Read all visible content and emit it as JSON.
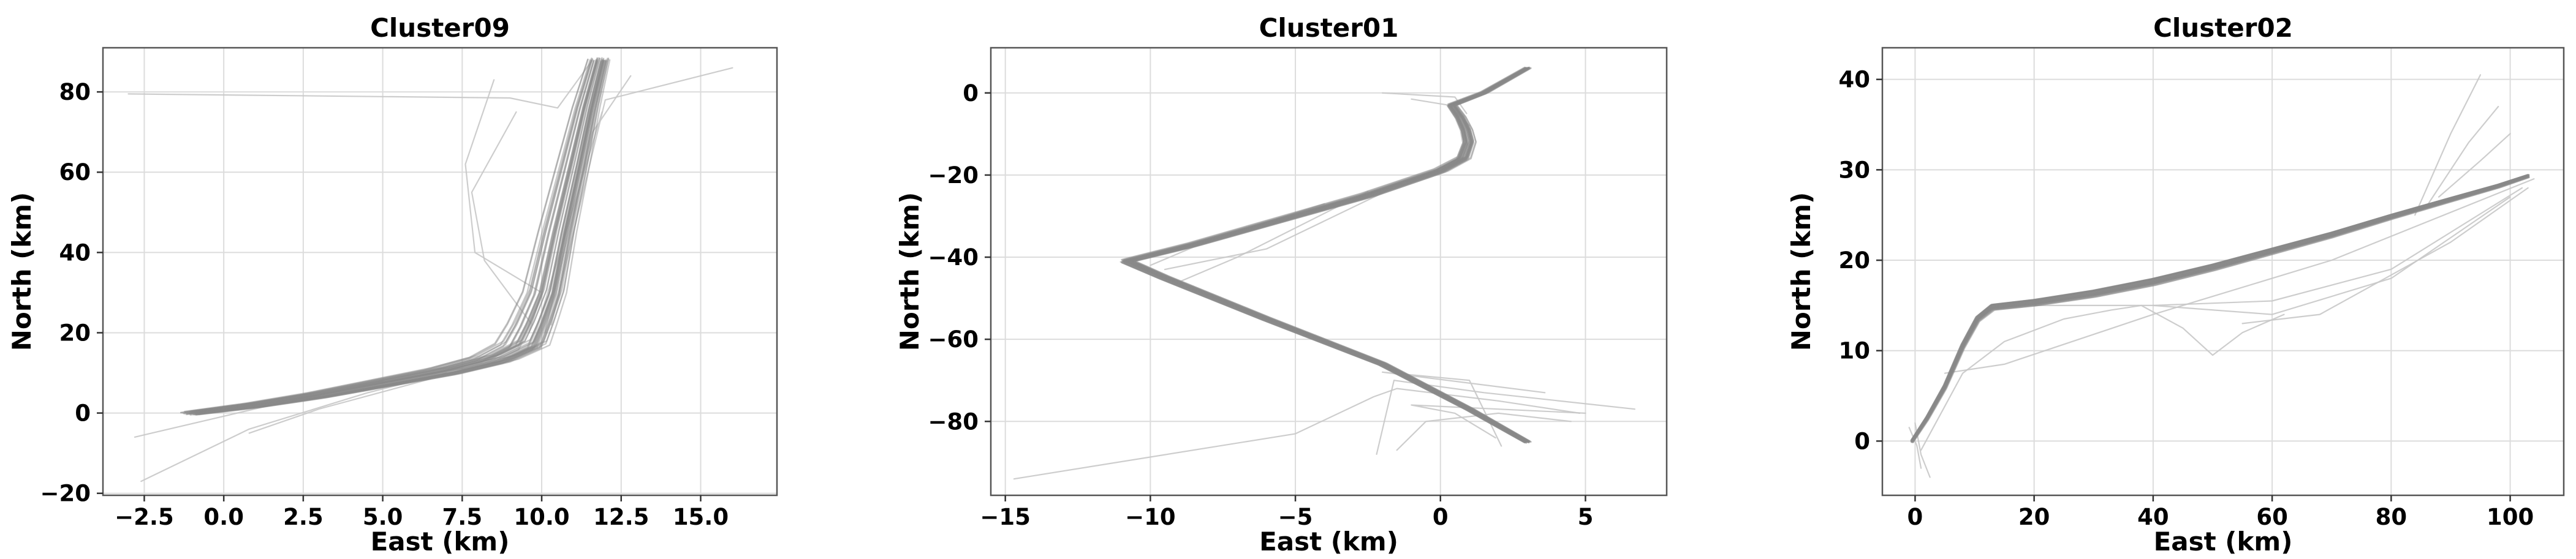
{
  "chart_data": [
    {
      "type": "line",
      "title": "Cluster09",
      "xlabel": "East (km)",
      "ylabel": "North (km)",
      "xlim": [
        -3.8,
        17.4
      ],
      "ylim": [
        -20.5,
        91.0
      ],
      "xticks": [
        -2.5,
        0.0,
        2.5,
        5.0,
        7.5,
        10.0,
        12.5,
        15.0
      ],
      "xtick_labels": [
        "−2.5",
        "0.0",
        "2.5",
        "5.0",
        "7.5",
        "10.0",
        "12.5",
        "15.0"
      ],
      "yticks": [
        -20,
        0,
        20,
        40,
        60,
        80
      ],
      "ytick_labels": [
        "−20",
        "0",
        "20",
        "40",
        "60",
        "80"
      ],
      "grid": true,
      "main_track": {
        "x": [
          -1.0,
          1.0,
          3.0,
          5.0,
          7.0,
          8.5,
          9.4,
          9.7,
          10.1,
          10.5,
          11.0,
          11.4,
          11.8
        ],
        "y": [
          0,
          2,
          4.5,
          7.5,
          10.5,
          13.5,
          17,
          22,
          30,
          45,
          62,
          76,
          88
        ]
      },
      "bundle_count": 45,
      "bundle_spread": [
        1.8,
        2.5
      ],
      "outliers": [
        {
          "x": [
            -3.0,
            9.0,
            10.5,
            11.6
          ],
          "y": [
            79.5,
            78.5,
            76.0,
            88.0
          ]
        },
        {
          "x": [
            8.5,
            7.6,
            7.9,
            10.0,
            9.6
          ],
          "y": [
            83.0,
            62.0,
            40.0,
            30.0,
            20.0
          ]
        },
        {
          "x": [
            9.2,
            7.8,
            8.2,
            9.7
          ],
          "y": [
            75.0,
            55.0,
            38.0,
            22.0
          ]
        },
        {
          "x": [
            16.0,
            12.0,
            10.3
          ],
          "y": [
            86.0,
            78.0,
            22.0
          ]
        },
        {
          "x": [
            12.8,
            11.6,
            10.1
          ],
          "y": [
            84.0,
            70.0,
            20.0
          ]
        },
        {
          "x": [
            11.9,
            10.0
          ],
          "y": [
            75.0,
            25.0
          ]
        },
        {
          "x": [
            -2.6,
            0.8,
            4.5,
            7.0
          ],
          "y": [
            -17.0,
            -4.0,
            5.0,
            10.0
          ]
        },
        {
          "x": [
            -2.8,
            1.5,
            5.0
          ],
          "y": [
            -6.0,
            2.0,
            8.0
          ]
        },
        {
          "x": [
            0.8,
            3.0,
            6.5
          ],
          "y": [
            -5.0,
            1.0,
            8.5
          ]
        }
      ]
    },
    {
      "type": "line",
      "title": "Cluster01",
      "xlabel": "East (km)",
      "ylabel": "North (km)",
      "xlim": [
        -15.5,
        7.8
      ],
      "ylim": [
        -98.0,
        11.0
      ],
      "xticks": [
        -15,
        -10,
        -5,
        0,
        5
      ],
      "xtick_labels": [
        "−15",
        "−10",
        "−5",
        "0",
        "5"
      ],
      "yticks": [
        -80,
        -60,
        -40,
        -20,
        0
      ],
      "ytick_labels": [
        "−80",
        "−60",
        "−40",
        "−20",
        "0"
      ],
      "grid": true,
      "main_track": {
        "x": [
          3.0,
          1.5,
          0.4,
          0.7,
          0.9,
          1.0,
          0.8,
          0.0,
          -2.5,
          -5.5,
          -8.5,
          -10.8,
          -9.5,
          -6.0,
          -2.0,
          1.0,
          3.0
        ],
        "y": [
          6,
          0,
          -3,
          -6,
          -9,
          -12,
          -16,
          -19,
          -25,
          -31,
          -37,
          -41,
          -45,
          -55,
          -66,
          -77,
          -85
        ]
      },
      "bundle_count": 40,
      "bundle_spread": [
        0.6,
        1.2
      ],
      "outliers": [
        {
          "x": [
            -14.7,
            -5.0,
            -2.3,
            -1.5,
            2.0,
            4.8
          ],
          "y": [
            -94.0,
            -83.0,
            -74.0,
            -72.0,
            -75.0,
            -78.0
          ]
        },
        {
          "x": [
            -2.2,
            -1.6,
            1.5,
            6.7
          ],
          "y": [
            -88.0,
            -70.0,
            -73.0,
            -77.0
          ]
        },
        {
          "x": [
            -1.5,
            -0.5,
            2.0,
            4.5
          ],
          "y": [
            -87.0,
            -80.0,
            -78.0,
            -80.0
          ]
        },
        {
          "x": [
            2.1,
            1.0,
            -2.0,
            3.6
          ],
          "y": [
            -86.0,
            -70.0,
            -68.0,
            -73.0
          ]
        },
        {
          "x": [
            1.9,
            0.5,
            -1.0,
            5.0
          ],
          "y": [
            -84.0,
            -78.0,
            -76.0,
            -78.0
          ]
        },
        {
          "x": [
            -2.5,
            -7.0,
            -9.0
          ],
          "y": [
            -24.0,
            -40.0,
            -46.0
          ]
        },
        {
          "x": [
            -1.3,
            -6.0,
            -9.5
          ],
          "y": [
            -22.0,
            -38.0,
            -43.0
          ]
        },
        {
          "x": [
            -4.0,
            -8.0,
            -10.0
          ],
          "y": [
            -27.0,
            -36.0,
            -42.0
          ]
        },
        {
          "x": [
            -2.0,
            0.5,
            0.9
          ],
          "y": [
            0.0,
            -1.0,
            -5.0
          ]
        },
        {
          "x": [
            -1.0,
            0.3,
            1.0
          ],
          "y": [
            -1.5,
            -3.0,
            -8.0
          ]
        }
      ]
    },
    {
      "type": "line",
      "title": "Cluster02",
      "xlabel": "East (km)",
      "ylabel": "North (km)",
      "xlim": [
        -5.5,
        109.0
      ],
      "ylim": [
        -6.0,
        43.5
      ],
      "xticks": [
        0,
        20,
        40,
        60,
        80,
        100
      ],
      "xtick_labels": [
        "0",
        "20",
        "40",
        "60",
        "80",
        "100"
      ],
      "yticks": [
        0,
        10,
        20,
        30,
        40
      ],
      "ytick_labels": [
        "0",
        "10",
        "20",
        "30",
        "40"
      ],
      "grid": true,
      "main_track": {
        "x": [
          -0.5,
          2.0,
          5.0,
          8.0,
          10.5,
          13.0,
          20.0,
          30.0,
          40.0,
          50.0,
          60.0,
          70.0,
          80.0,
          90.0,
          98.0,
          103.0
        ],
        "y": [
          0,
          2.5,
          6.0,
          10.5,
          13.5,
          14.8,
          15.3,
          16.3,
          17.6,
          19.2,
          21.0,
          22.8,
          24.8,
          26.7,
          28.2,
          29.3
        ]
      },
      "bundle_count": 40,
      "bundle_spread": [
        1.0,
        0.8
      ],
      "outliers": [
        {
          "x": [
            1.0,
            8.0,
            15.0,
            25.0,
            33.0,
            38.0,
            45.0,
            50.0,
            55.0,
            62.0
          ],
          "y": [
            -1.0,
            7.5,
            11.0,
            13.5,
            14.5,
            15.0,
            12.5,
            9.5,
            12.0,
            14.0
          ]
        },
        {
          "x": [
            5.0,
            15.0,
            40.0,
            70.0,
            104.0
          ],
          "y": [
            7.5,
            8.5,
            14.0,
            20.0,
            29.0
          ]
        },
        {
          "x": [
            20.0,
            40.0,
            60.0,
            80.0,
            102.0
          ],
          "y": [
            15.0,
            15.0,
            15.5,
            19.0,
            28.0
          ]
        },
        {
          "x": [
            40.0,
            60.0,
            80.0,
            100.0
          ],
          "y": [
            15.0,
            14.0,
            18.0,
            27.0
          ]
        },
        {
          "x": [
            55.0,
            68.0,
            90.0,
            103.0
          ],
          "y": [
            13.0,
            14.0,
            22.0,
            28.0
          ]
        },
        {
          "x": [
            84.0,
            90.0,
            95.0
          ],
          "y": [
            25.0,
            34.0,
            40.5
          ]
        },
        {
          "x": [
            86.0,
            93.0,
            98.0
          ],
          "y": [
            26.0,
            33.0,
            37.0
          ]
        },
        {
          "x": [
            88.0,
            95.0,
            100.0
          ],
          "y": [
            27.0,
            31.0,
            34.0
          ]
        },
        {
          "x": [
            -1.0,
            0.3,
            1.0
          ],
          "y": [
            1.5,
            -0.5,
            -3.0
          ]
        },
        {
          "x": [
            0.0,
            1.0,
            2.5
          ],
          "y": [
            2.0,
            -1.5,
            -4.0
          ]
        }
      ]
    }
  ]
}
